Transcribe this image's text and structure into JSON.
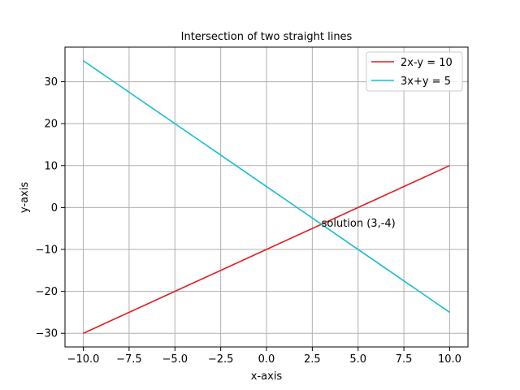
{
  "chart_data": {
    "type": "line",
    "title": "Intersection of two straight lines",
    "xlabel": "x-axis",
    "ylabel": "y-axis",
    "xlim": [
      -11,
      11
    ],
    "ylim": [
      -33.25,
      38.25
    ],
    "x_ticks": [
      -10,
      -7.5,
      -5,
      -2.5,
      0,
      2.5,
      5,
      7.5,
      10
    ],
    "x_tick_labels": [
      "−10.0",
      "−7.5",
      "−5.0",
      "−2.5",
      "0.0",
      "2.5",
      "5.0",
      "7.5",
      "10.0"
    ],
    "y_ticks": [
      -30,
      -20,
      -10,
      0,
      10,
      20,
      30
    ],
    "y_tick_labels": [
      "−30",
      "−20",
      "−10",
      "0",
      "10",
      "20",
      "30"
    ],
    "grid": true,
    "legend_position": "top-right",
    "series": [
      {
        "name": "2x-y = 10",
        "color": "#e31a1c",
        "x": [
          -10,
          10
        ],
        "y": [
          -30,
          10
        ]
      },
      {
        "name": "3x+y = 5",
        "color": "#17becf",
        "x": [
          -10,
          10
        ],
        "y": [
          35,
          -25
        ]
      }
    ],
    "annotations": [
      {
        "text": "solution (3,-4)",
        "x": 3,
        "y": -4
      }
    ]
  }
}
